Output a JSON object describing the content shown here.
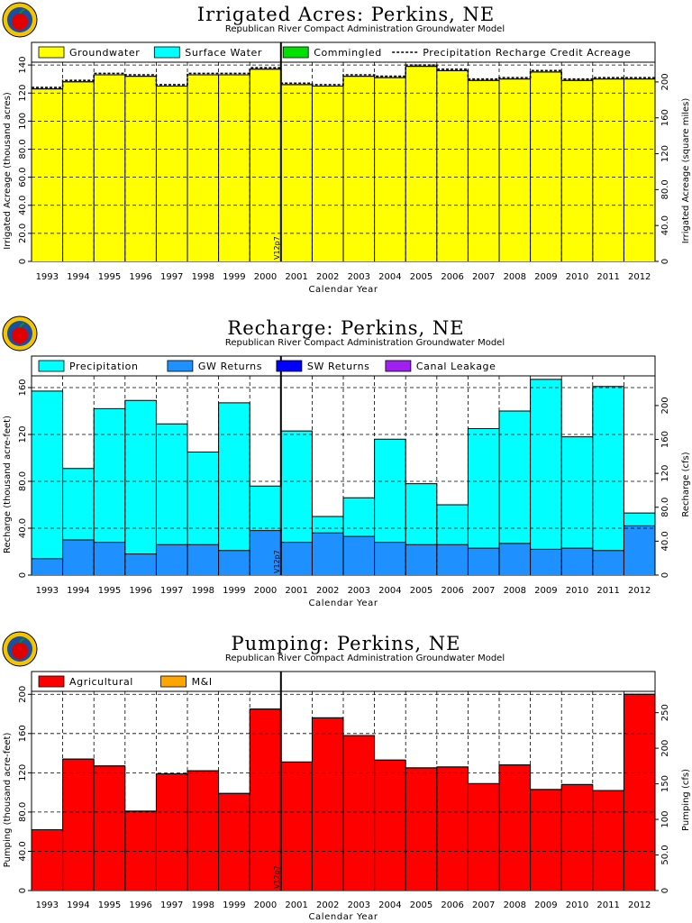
{
  "colors": {
    "groundwater": "#ffff00",
    "surface_water": "#00ffff",
    "commingled": "#00e000",
    "precipitation": "#00ffff",
    "gw_returns": "#1e90ff",
    "sw_returns": "#0000ff",
    "canal_leakage": "#a020f0",
    "agricultural": "#ff0000",
    "mi": "#ffa500"
  },
  "vline_label": "V12p7",
  "chart_data": [
    {
      "type": "bar",
      "title": "Irrigated Acres: Perkins, NE",
      "subtitle": "Republican River Compact Administration Groundwater Model",
      "xlabel": "Calendar Year",
      "ylabel": "Irrigated Acreage (thousand acres)",
      "ylabel_right": "Irrigated Acreage (square miles)",
      "categories": [
        "1993",
        "1994",
        "1995",
        "1996",
        "1997",
        "1998",
        "1999",
        "2000",
        "2001",
        "2002",
        "2003",
        "2004",
        "2005",
        "2006",
        "2007",
        "2008",
        "2009",
        "2010",
        "2011",
        "2012"
      ],
      "ylim": [
        0,
        142
      ],
      "yticks": [
        0,
        20.0,
        40.0,
        60.0,
        80.0,
        100,
        120,
        140
      ],
      "yticklabels": [
        "0",
        "20.0",
        "40.0",
        "60.0",
        "80.0",
        "100",
        "120",
        "140"
      ],
      "ylim_right": [
        0,
        222
      ],
      "yticks_right": [
        0,
        40.0,
        80.0,
        120,
        160,
        200
      ],
      "yticklabels_right": [
        "0",
        "40.0",
        "80.0",
        "120",
        "160",
        "200"
      ],
      "stacked": true,
      "legend": [
        "Groundwater",
        "Surface Water",
        "Commingled",
        "Precipitation Recharge Credit Acreage"
      ],
      "series": [
        {
          "name": "Groundwater",
          "values": [
            123,
            128,
            133,
            132,
            125,
            133,
            133,
            137,
            126,
            125,
            132,
            131,
            139,
            136,
            129,
            130,
            135,
            129,
            130,
            130
          ]
        },
        {
          "name": "Surface Water",
          "values": [
            0,
            0,
            0,
            0,
            0,
            0,
            0,
            0,
            0,
            0,
            0,
            0,
            0,
            0,
            0,
            0,
            0,
            0,
            0,
            0
          ]
        },
        {
          "name": "Commingled",
          "values": [
            0,
            0,
            0,
            0,
            0,
            0,
            0,
            0,
            0,
            0,
            0,
            0,
            0,
            0,
            0,
            0,
            0,
            0,
            0,
            0
          ]
        }
      ],
      "dashed_line": {
        "name": "Precipitation Recharge Credit Acreage",
        "values": [
          124,
          129,
          134,
          133,
          126,
          134,
          134,
          138,
          127,
          126,
          133,
          132,
          140,
          137,
          130,
          131,
          136,
          130,
          131,
          131
        ]
      },
      "vline_x": 2001
    },
    {
      "type": "bar",
      "title": "Recharge: Perkins, NE",
      "subtitle": "Republican River Compact Administration Groundwater Model",
      "xlabel": "Calendar Year",
      "ylabel": "Recharge (thousand acre-feet)",
      "ylabel_right": "Recharge (cfs)",
      "categories": [
        "1993",
        "1994",
        "1995",
        "1996",
        "1997",
        "1998",
        "1999",
        "2000",
        "2001",
        "2002",
        "2003",
        "2004",
        "2005",
        "2006",
        "2007",
        "2008",
        "2009",
        "2010",
        "2011",
        "2012"
      ],
      "ylim": [
        0,
        170
      ],
      "yticks": [
        0,
        40.0,
        80.0,
        120,
        160
      ],
      "yticklabels": [
        "0",
        "40.0",
        "80.0",
        "120",
        "160"
      ],
      "ylim_right": [
        0,
        235
      ],
      "yticks_right": [
        0,
        40.0,
        80.0,
        120,
        160,
        200
      ],
      "yticklabels_right": [
        "0",
        "40.0",
        "80.0",
        "120",
        "160",
        "200"
      ],
      "stacked": true,
      "legend": [
        "Precipitation",
        "GW Returns",
        "SW Returns",
        "Canal Leakage"
      ],
      "series": [
        {
          "name": "GW Returns",
          "values": [
            14,
            30,
            28,
            18,
            26,
            26,
            21,
            38,
            28,
            36,
            33,
            28,
            26,
            26,
            23,
            27,
            22,
            23,
            21,
            42
          ]
        },
        {
          "name": "Precipitation",
          "values": [
            143,
            61,
            114,
            131,
            103,
            79,
            126,
            38,
            95,
            14,
            33,
            88,
            52,
            34,
            102,
            113,
            145,
            95,
            140,
            11
          ]
        },
        {
          "name": "SW Returns",
          "values": [
            0,
            0,
            0,
            0,
            0,
            0,
            0,
            0,
            0,
            0,
            0,
            0,
            0,
            0,
            0,
            0,
            0,
            0,
            0,
            0
          ]
        },
        {
          "name": "Canal Leakage",
          "values": [
            0,
            0,
            0,
            0,
            0,
            0,
            0,
            0,
            0,
            0,
            0,
            0,
            0,
            0,
            0,
            0,
            0,
            0,
            0,
            0
          ]
        }
      ],
      "vline_x": 2001
    },
    {
      "type": "bar",
      "title": "Pumping: Perkins, NE",
      "subtitle": "Republican River Compact Administration Groundwater Model",
      "xlabel": "Calendar Year",
      "ylabel": "Pumping (thousand acre-feet)",
      "ylabel_right": "Pumping (cfs)",
      "categories": [
        "1993",
        "1994",
        "1995",
        "1996",
        "1997",
        "1998",
        "1999",
        "2000",
        "2001",
        "2002",
        "2003",
        "2004",
        "2005",
        "2006",
        "2007",
        "2008",
        "2009",
        "2010",
        "2011",
        "2012"
      ],
      "ylim": [
        0,
        203
      ],
      "yticks": [
        0,
        40.0,
        80.0,
        120,
        160,
        200
      ],
      "yticklabels": [
        "0",
        "40.0",
        "80.0",
        "120",
        "160",
        "200"
      ],
      "ylim_right": [
        0,
        280
      ],
      "yticks_right": [
        0,
        50.0,
        100,
        150,
        200,
        250
      ],
      "yticklabels_right": [
        "0",
        "50.0",
        "100",
        "150",
        "200",
        "250"
      ],
      "stacked": true,
      "legend": [
        "Agricultural",
        "M&I"
      ],
      "series": [
        {
          "name": "Agricultural",
          "values": [
            62,
            134,
            127,
            81,
            119,
            122,
            99,
            185,
            131,
            176,
            158,
            133,
            125,
            126,
            109,
            128,
            103,
            108,
            102,
            200
          ]
        },
        {
          "name": "M&I",
          "values": [
            0,
            0,
            0,
            0,
            0,
            0,
            0,
            0,
            0,
            0,
            0,
            0,
            0,
            0,
            0,
            0,
            0,
            0,
            0,
            0
          ]
        }
      ],
      "vline_x": 2001
    }
  ]
}
